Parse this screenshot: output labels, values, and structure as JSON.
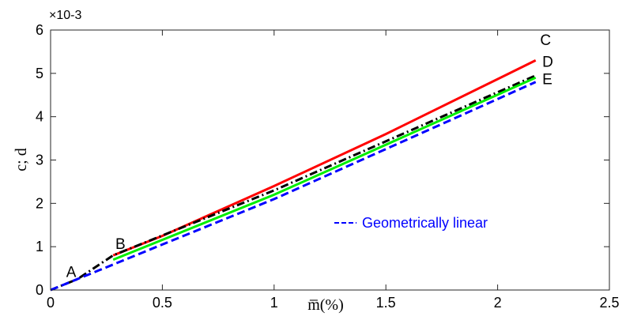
{
  "chart_data": {
    "type": "line",
    "xlabel": "m̅(%)",
    "ylabel": "c; d",
    "y_exponent": "×10-3",
    "xlim": [
      0,
      2.5
    ],
    "ylim": [
      0,
      0.006
    ],
    "xticks": [
      0,
      0.5,
      1,
      1.5,
      2,
      2.5
    ],
    "xtick_labels": [
      "0",
      "0.5",
      "1",
      "1.5",
      "2",
      "2.5"
    ],
    "yticks": [
      0,
      0.001,
      0.002,
      0.003,
      0.004,
      0.005,
      0.006
    ],
    "ytick_labels": [
      "0",
      "1",
      "2",
      "3",
      "4",
      "5",
      "6"
    ],
    "grid": false,
    "series": [
      {
        "color": "#ff0000",
        "style": "solid",
        "x": [
          0.28,
          0.5,
          1.0,
          1.5,
          2.17
        ],
        "y": [
          0.0008,
          0.00125,
          0.0024,
          0.0036,
          0.0053
        ]
      },
      {
        "color": "#000000",
        "style": "dashdot",
        "x": [
          0,
          0.12,
          0.28,
          1.0,
          2.17
        ],
        "y": [
          0,
          0.00025,
          0.0008,
          0.0023,
          0.00495
        ]
      },
      {
        "color": "#00ee00",
        "style": "solid",
        "x": [
          0.28,
          1.0,
          2.17
        ],
        "y": [
          0.0007,
          0.0022,
          0.0049
        ]
      },
      {
        "name": "Geometrically linear",
        "color": "#0000ff",
        "style": "dashed",
        "x": [
          0,
          0.5,
          1.0,
          2.17
        ],
        "y": [
          0,
          0.00105,
          0.0021,
          0.0048
        ]
      }
    ],
    "point_labels": [
      {
        "text": "A",
        "x": 0.07,
        "y": 0.0003
      },
      {
        "text": "B",
        "x": 0.29,
        "y": 0.00095
      },
      {
        "text": "C",
        "x": 2.19,
        "y": 0.00565
      },
      {
        "text": "D",
        "x": 2.2,
        "y": 0.00515
      },
      {
        "text": "E",
        "x": 2.2,
        "y": 0.00475
      }
    ],
    "legend": {
      "position": "inside-lower-right",
      "entries": [
        {
          "text": "Geometrically linear",
          "color": "#0000ff",
          "style": "dashed"
        }
      ]
    }
  }
}
